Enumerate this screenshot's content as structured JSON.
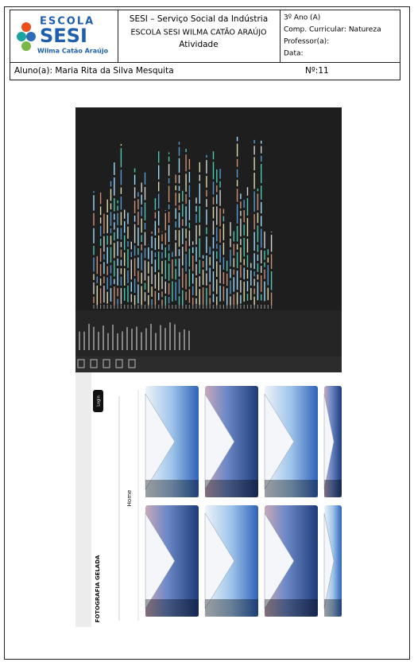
{
  "header": {
    "logo": {
      "line1": "ESCOLA",
      "line2": "SESI",
      "line3": "Wilma Catão Araújo"
    },
    "center": [
      "SESI – Serviço Social da Indústria",
      "ESCOLA SESI WILMA CATÃO ARAÚJO",
      "Atividade"
    ],
    "right": [
      "3º Ano (A)",
      "Comp. Curricular: Natureza",
      "Professor(a):",
      "Data:"
    ]
  },
  "student": {
    "name": "Aluno(a): Maria Rita da Silva Mesquita",
    "number": "Nº:11"
  },
  "screenshot": {
    "site_title": "FOTOGRAFIA GELADA",
    "nav": "Home",
    "button": "Login"
  }
}
